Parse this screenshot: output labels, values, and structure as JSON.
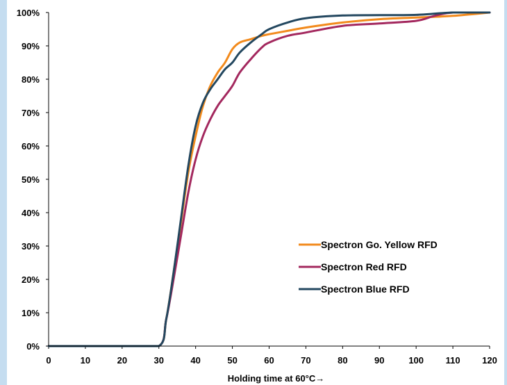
{
  "chart_data": {
    "type": "line",
    "title": "",
    "xlabel": "Holding time at 60°C→",
    "ylabel": "",
    "xlim": [
      0,
      120
    ],
    "ylim": [
      0,
      100
    ],
    "x_ticks": [
      "0",
      "10",
      "20",
      "30",
      "40",
      "50",
      "60",
      "70",
      "80",
      "90",
      "100",
      "110",
      "120"
    ],
    "y_ticks": [
      "0%",
      "10%",
      "20%",
      "30%",
      "40%",
      "50%",
      "60%",
      "70%",
      "80%",
      "90%",
      "100%"
    ],
    "grid": false,
    "legend_position": "lower-right",
    "series": [
      {
        "name": "Spectron Go. Yellow RFD",
        "color": "#f28a1c",
        "points": [
          [
            0,
            0
          ],
          [
            20,
            0
          ],
          [
            30,
            0
          ],
          [
            32,
            8
          ],
          [
            34,
            22
          ],
          [
            36,
            37
          ],
          [
            38,
            52
          ],
          [
            40,
            63
          ],
          [
            42,
            72
          ],
          [
            44,
            78
          ],
          [
            46,
            82
          ],
          [
            48,
            85
          ],
          [
            50,
            89
          ],
          [
            52,
            91
          ],
          [
            55,
            92
          ],
          [
            58,
            93
          ],
          [
            60,
            93.5
          ],
          [
            65,
            94.5
          ],
          [
            70,
            95.5
          ],
          [
            80,
            97
          ],
          [
            90,
            98
          ],
          [
            100,
            98.5
          ],
          [
            110,
            99
          ],
          [
            120,
            100
          ]
        ]
      },
      {
        "name": "Spectron Red RFD",
        "color": "#a3285e",
        "points": [
          [
            0,
            0
          ],
          [
            20,
            0
          ],
          [
            30,
            0
          ],
          [
            32,
            8
          ],
          [
            34,
            20
          ],
          [
            36,
            33
          ],
          [
            38,
            46
          ],
          [
            40,
            56
          ],
          [
            42,
            63
          ],
          [
            44,
            68
          ],
          [
            46,
            72
          ],
          [
            48,
            75
          ],
          [
            50,
            78
          ],
          [
            52,
            82
          ],
          [
            55,
            86
          ],
          [
            58,
            89.5
          ],
          [
            60,
            91
          ],
          [
            65,
            93
          ],
          [
            70,
            94
          ],
          [
            80,
            96
          ],
          [
            90,
            96.7
          ],
          [
            100,
            97.5
          ],
          [
            105,
            99
          ],
          [
            110,
            100
          ],
          [
            120,
            100
          ]
        ]
      },
      {
        "name": "Spectron Blue RFD",
        "color": "#23475f",
        "points": [
          [
            0,
            0
          ],
          [
            20,
            0
          ],
          [
            30,
            0
          ],
          [
            32,
            8
          ],
          [
            34,
            22
          ],
          [
            36,
            38
          ],
          [
            38,
            54
          ],
          [
            40,
            66
          ],
          [
            42,
            73
          ],
          [
            44,
            77
          ],
          [
            46,
            80
          ],
          [
            48,
            83
          ],
          [
            50,
            85
          ],
          [
            52,
            88
          ],
          [
            55,
            91
          ],
          [
            58,
            93.5
          ],
          [
            60,
            95
          ],
          [
            65,
            97
          ],
          [
            70,
            98.3
          ],
          [
            80,
            99.1
          ],
          [
            90,
            99.2
          ],
          [
            100,
            99.3
          ],
          [
            110,
            100
          ],
          [
            120,
            100
          ]
        ]
      }
    ]
  }
}
